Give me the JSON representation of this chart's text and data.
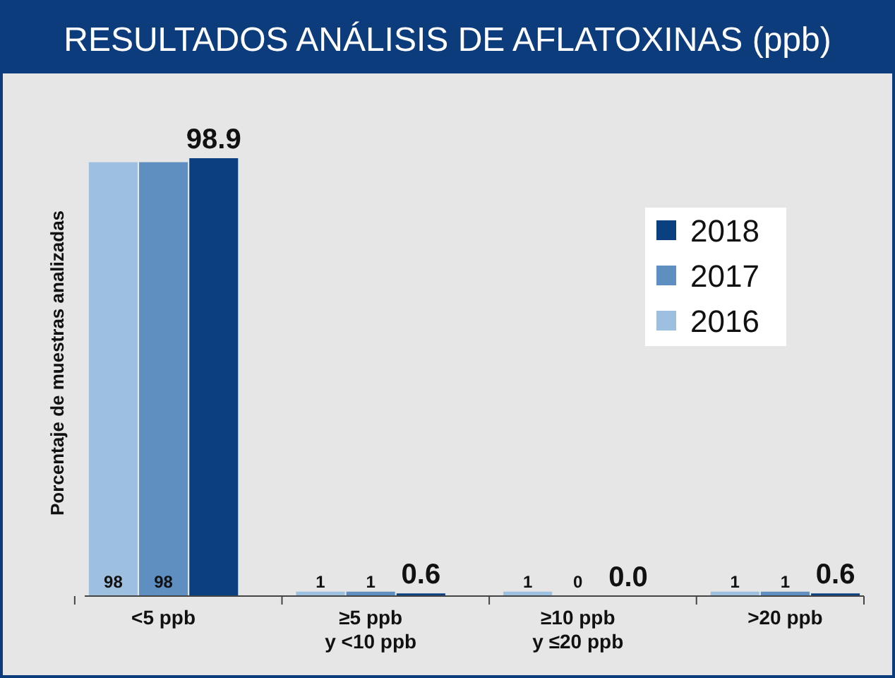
{
  "chart_data": {
    "type": "bar",
    "title": "RESULTADOS ANÁLISIS DE AFLATOXINAS (ppb)",
    "ylabel": "Porcentaje de muestras analizadas",
    "categories": [
      "<5 ppb",
      "≥5 ppb\ny <10 ppb",
      "≥10 ppb\ny ≤20 ppb",
      ">20 ppb"
    ],
    "series": [
      {
        "name": "2016",
        "color": "#9dbfe0",
        "values": [
          98,
          1,
          1,
          1
        ],
        "value_labels": [
          "98",
          "1",
          "1",
          "1"
        ]
      },
      {
        "name": "2017",
        "color": "#5f8fc0",
        "values": [
          98,
          1,
          0,
          1
        ],
        "value_labels": [
          "98",
          "1",
          "0",
          "1"
        ]
      },
      {
        "name": "2018",
        "color": "#0a3f80",
        "values": [
          98.9,
          0.6,
          0,
          0.6
        ],
        "value_labels": [
          "98.9",
          "0.6",
          "0.0",
          "0.6"
        ]
      }
    ],
    "legend": "top right",
    "grid": false
  }
}
